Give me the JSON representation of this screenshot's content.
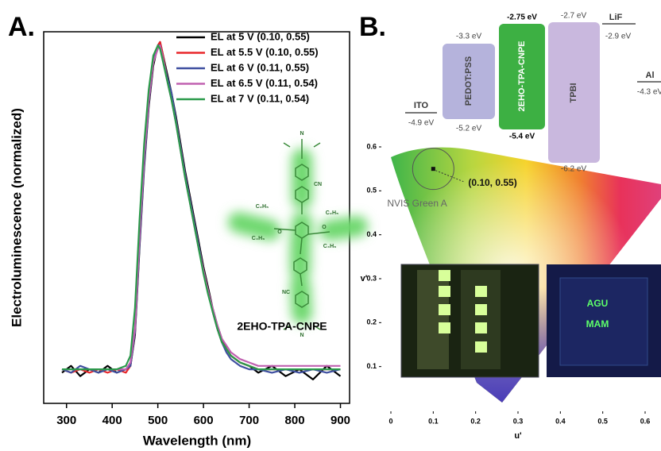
{
  "panels": [
    "A.",
    "B."
  ],
  "chart_data": [
    {
      "type": "line",
      "xlabel": "Wavelength (nm)",
      "ylabel": "Electroluminescence (normalized)",
      "x": [
        290,
        310,
        330,
        350,
        370,
        390,
        410,
        430,
        440,
        450,
        460,
        470,
        480,
        490,
        500,
        505,
        510,
        520,
        530,
        540,
        550,
        560,
        570,
        580,
        590,
        600,
        610,
        620,
        630,
        640,
        650,
        660,
        680,
        700,
        720,
        750,
        780,
        810,
        840,
        870,
        900
      ],
      "xlim": [
        250,
        920
      ],
      "xticks": [
        300,
        400,
        500,
        600,
        700,
        800,
        900
      ],
      "ylim": [
        -0.06,
        1.03
      ],
      "legend": "upper right",
      "annotations": [
        "2EHO-TPA-CNPE"
      ],
      "series": [
        {
          "name": "EL at 5 V (0.10, 0.55)",
          "color": "#000000",
          "values": [
            0.03,
            0.05,
            0.02,
            0.04,
            0.03,
            0.05,
            0.03,
            0.04,
            0.05,
            0.14,
            0.4,
            0.63,
            0.81,
            0.93,
            0.99,
            1.0,
            0.97,
            0.91,
            0.85,
            0.78,
            0.7,
            0.62,
            0.55,
            0.48,
            0.41,
            0.34,
            0.28,
            0.22,
            0.17,
            0.13,
            0.1,
            0.08,
            0.06,
            0.05,
            0.03,
            0.05,
            0.02,
            0.04,
            0.01,
            0.05,
            0.02
          ]
        },
        {
          "name": "EL at 5.5 V (0.10, 0.55)",
          "color": "#e8262a",
          "values": [
            0.04,
            0.03,
            0.04,
            0.03,
            0.04,
            0.03,
            0.04,
            0.03,
            0.05,
            0.15,
            0.42,
            0.65,
            0.82,
            0.94,
            0.99,
            1.0,
            0.97,
            0.9,
            0.84,
            0.77,
            0.69,
            0.61,
            0.54,
            0.47,
            0.4,
            0.33,
            0.27,
            0.21,
            0.16,
            0.12,
            0.1,
            0.08,
            0.06,
            0.05,
            0.04,
            0.04,
            0.04,
            0.04,
            0.04,
            0.04,
            0.04
          ]
        },
        {
          "name": "EL at 6 V (0.11, 0.55)",
          "color": "#3f4fa0",
          "values": [
            0.04,
            0.03,
            0.05,
            0.04,
            0.03,
            0.04,
            0.03,
            0.04,
            0.05,
            0.15,
            0.41,
            0.64,
            0.82,
            0.94,
            0.99,
            0.99,
            0.96,
            0.9,
            0.85,
            0.77,
            0.69,
            0.61,
            0.54,
            0.47,
            0.4,
            0.33,
            0.27,
            0.21,
            0.16,
            0.12,
            0.09,
            0.07,
            0.05,
            0.04,
            0.04,
            0.03,
            0.04,
            0.03,
            0.04,
            0.03,
            0.04
          ]
        },
        {
          "name": "EL at 6.5 V (0.11, 0.54)",
          "color": "#c060b0",
          "values": [
            0.04,
            0.04,
            0.04,
            0.04,
            0.04,
            0.04,
            0.04,
            0.04,
            0.06,
            0.16,
            0.43,
            0.66,
            0.83,
            0.94,
            0.98,
            0.99,
            0.96,
            0.89,
            0.83,
            0.76,
            0.68,
            0.6,
            0.53,
            0.46,
            0.39,
            0.33,
            0.27,
            0.22,
            0.17,
            0.13,
            0.11,
            0.09,
            0.07,
            0.06,
            0.05,
            0.05,
            0.05,
            0.05,
            0.05,
            0.05,
            0.05
          ]
        },
        {
          "name": "EL at 7 V (0.11, 0.54)",
          "color": "#2a9a4a",
          "values": [
            0.04,
            0.04,
            0.04,
            0.04,
            0.04,
            0.04,
            0.04,
            0.05,
            0.08,
            0.22,
            0.48,
            0.7,
            0.86,
            0.96,
            0.99,
            0.98,
            0.95,
            0.89,
            0.83,
            0.76,
            0.68,
            0.6,
            0.53,
            0.46,
            0.39,
            0.32,
            0.26,
            0.21,
            0.16,
            0.12,
            0.1,
            0.08,
            0.06,
            0.05,
            0.04,
            0.04,
            0.04,
            0.04,
            0.04,
            0.04,
            0.04
          ]
        }
      ]
    },
    {
      "type": "scatter",
      "xlabel": "u'",
      "ylabel": "v'",
      "x": [
        0.1
      ],
      "values": [
        0.55
      ],
      "color": "#111111",
      "xlim": [
        0,
        0.6
      ],
      "xticks": [
        0,
        0.1,
        0.2,
        0.3,
        0.4,
        0.5,
        0.6
      ],
      "ylim": [
        0,
        0.6
      ],
      "yticks": [
        0.1,
        0.2,
        0.3,
        0.4,
        0.5,
        0.6
      ],
      "annotations": [
        "(0.10, 0.55)",
        "NVIS Green A"
      ]
    }
  ],
  "molecule_labels": [
    "N",
    "CN",
    "O",
    "O",
    "NC",
    "N",
    "C₂H₅",
    "C₄H₉",
    "C₂H₅",
    "C₄H₉"
  ],
  "energy_diagram": {
    "layers": [
      {
        "name": "ITO",
        "levels": [
          "-4.9 eV"
        ]
      },
      {
        "name": "PEDOT:PSS",
        "levels": [
          "-3.3 eV",
          "-5.2 eV"
        ]
      },
      {
        "name": "2EHO-TPA-CNPE",
        "levels": [
          "-2.75 eV",
          "-5.4 eV"
        ]
      },
      {
        "name": "TPBI",
        "levels": [
          "-2.7 eV",
          "-6.2 eV"
        ]
      },
      {
        "name": "LiF",
        "levels": [
          "-2.9 eV"
        ]
      },
      {
        "name": "Al",
        "levels": [
          "-4.3 eV"
        ]
      }
    ]
  },
  "photos": {
    "labels": [
      "AGU",
      "MAM"
    ]
  }
}
